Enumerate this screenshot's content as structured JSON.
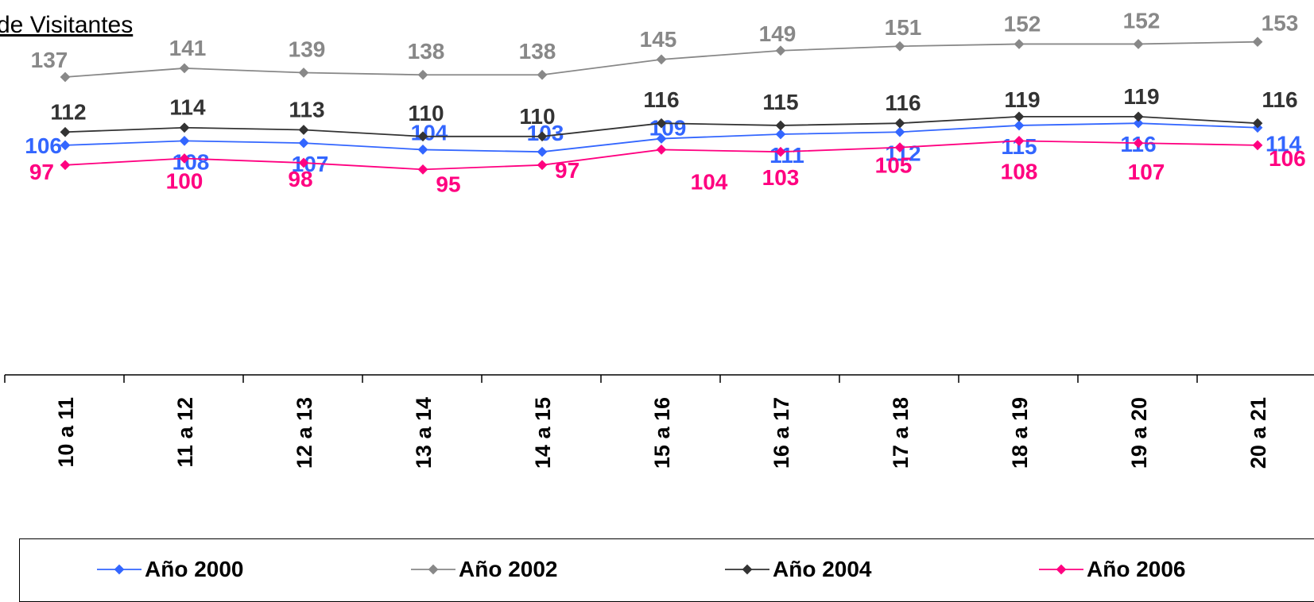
{
  "title": "de Visitantes",
  "chart_data": {
    "type": "line",
    "title": "de Visitantes",
    "xlabel": "",
    "ylabel": "",
    "grid": false,
    "legend": "bottom",
    "categories": [
      "10 a 11",
      "11 a 12",
      "12 a 13",
      "13 a 14",
      "14 a 15",
      "15 a 16",
      "16 a 17",
      "17 a 18",
      "18 a 19",
      "19 a 20",
      "20 a 21"
    ],
    "series": [
      {
        "name": "Año 2000",
        "color": "#3366FF",
        "values": [
          106,
          108,
          107,
          104,
          103,
          109,
          111,
          112,
          115,
          116,
          114
        ]
      },
      {
        "name": "Año 2002",
        "color": "#888888",
        "values": [
          137,
          141,
          139,
          138,
          138,
          145,
          149,
          151,
          152,
          152,
          153
        ]
      },
      {
        "name": "Año 2004",
        "color": "#333333",
        "values": [
          112,
          114,
          113,
          110,
          110,
          116,
          115,
          116,
          119,
          119,
          116
        ]
      },
      {
        "name": "Año 2006",
        "color": "#FF0080",
        "values": [
          97,
          100,
          98,
          95,
          97,
          104,
          103,
          105,
          108,
          107,
          106
        ]
      }
    ]
  }
}
